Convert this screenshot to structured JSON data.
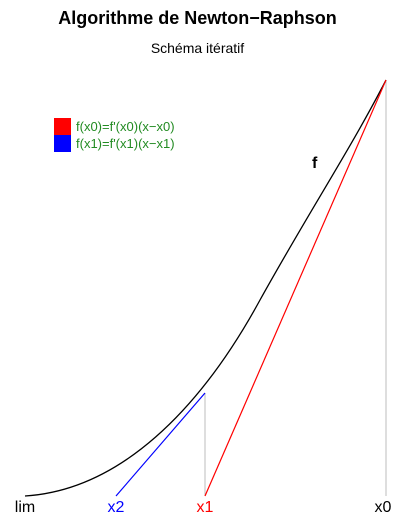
{
  "title": "Algorithme de Newton−Raphson",
  "subtitle": "Schéma itératif",
  "legend": [
    {
      "label": "f(x0)=f'(x0)(x−x0)",
      "swatch": "#ff0000",
      "text_color": "#228b22"
    },
    {
      "label": "f(x1)=f'(x1)(x−x1)",
      "swatch": "#0000ff",
      "text_color": "#228b22"
    }
  ],
  "curve_label": "f",
  "axis_labels": {
    "lim": "lim",
    "x2": "x2",
    "x1": "x1",
    "x0": "x0"
  },
  "colors": {
    "curve": "#000000",
    "tangent_x0": "#ff0000",
    "tangent_x1": "#0000ff",
    "guide": "#bebebe",
    "label_x2": "#0000ff",
    "label_x1": "#ff0000",
    "label_default": "#000000"
  }
}
